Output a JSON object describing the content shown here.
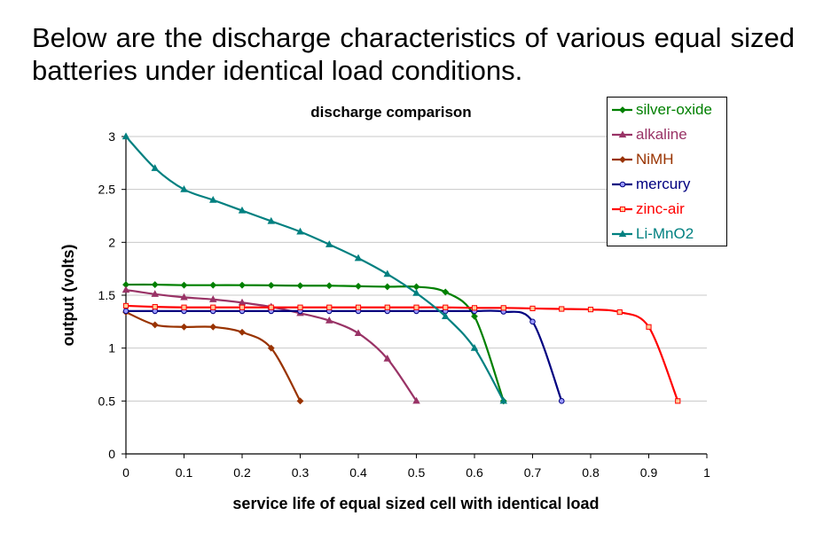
{
  "intro_text": "Below are the discharge characteristics of various equal sized batteries under identical load conditions.",
  "chart_data": {
    "type": "line",
    "title": "discharge comparison",
    "xlabel": "service life of equal sized cell with identical load",
    "ylabel": "output  (volts)",
    "xlim": [
      0,
      1
    ],
    "ylim": [
      0,
      3
    ],
    "xticks": [
      "0",
      "0.1",
      "0.2",
      "0.3",
      "0.4",
      "0.5",
      "0.6",
      "0.7",
      "0.8",
      "0.9",
      "1"
    ],
    "yticks": [
      "0",
      "0.5",
      "1",
      "1.5",
      "2",
      "2.5",
      "3"
    ],
    "grid": "horizontal",
    "legend_position": "top-right",
    "series": [
      {
        "name": "silver-oxide",
        "color": "#008000",
        "marker": "diamond",
        "x": [
          0,
          0.05,
          0.1,
          0.15,
          0.2,
          0.25,
          0.3,
          0.35,
          0.4,
          0.45,
          0.5,
          0.55,
          0.6,
          0.65
        ],
        "y": [
          1.6,
          1.6,
          1.595,
          1.595,
          1.595,
          1.593,
          1.59,
          1.59,
          1.585,
          1.58,
          1.58,
          1.53,
          1.3,
          0.5
        ]
      },
      {
        "name": "alkaline",
        "color": "#993366",
        "marker": "triangle",
        "x": [
          0,
          0.05,
          0.1,
          0.15,
          0.2,
          0.25,
          0.3,
          0.35,
          0.4,
          0.45,
          0.5
        ],
        "y": [
          1.55,
          1.51,
          1.48,
          1.46,
          1.43,
          1.39,
          1.33,
          1.26,
          1.14,
          0.9,
          0.5
        ]
      },
      {
        "name": "NiMH",
        "color": "#993300",
        "marker": "diamond",
        "x": [
          0,
          0.05,
          0.1,
          0.15,
          0.2,
          0.25,
          0.3
        ],
        "y": [
          1.34,
          1.22,
          1.2,
          1.2,
          1.15,
          1.0,
          0.5
        ]
      },
      {
        "name": "mercury",
        "color": "#000080",
        "marker": "circle",
        "x": [
          0,
          0.05,
          0.1,
          0.15,
          0.2,
          0.25,
          0.3,
          0.35,
          0.4,
          0.45,
          0.5,
          0.55,
          0.6,
          0.65,
          0.7,
          0.75
        ],
        "y": [
          1.35,
          1.35,
          1.35,
          1.35,
          1.35,
          1.35,
          1.35,
          1.35,
          1.35,
          1.35,
          1.35,
          1.35,
          1.35,
          1.345,
          1.25,
          0.5
        ]
      },
      {
        "name": "zinc-air",
        "color": "#FF0000",
        "marker": "square",
        "x": [
          0,
          0.05,
          0.1,
          0.15,
          0.2,
          0.25,
          0.3,
          0.35,
          0.4,
          0.45,
          0.5,
          0.55,
          0.6,
          0.65,
          0.7,
          0.75,
          0.8,
          0.85,
          0.9,
          0.95
        ],
        "y": [
          1.4,
          1.39,
          1.385,
          1.385,
          1.385,
          1.385,
          1.385,
          1.385,
          1.385,
          1.385,
          1.385,
          1.385,
          1.38,
          1.38,
          1.375,
          1.37,
          1.365,
          1.34,
          1.2,
          0.5
        ]
      },
      {
        "name": "Li-MnO2",
        "color": "#008080",
        "marker": "triangle",
        "x": [
          0,
          0.05,
          0.1,
          0.15,
          0.2,
          0.25,
          0.3,
          0.35,
          0.4,
          0.45,
          0.5,
          0.55,
          0.6,
          0.65
        ],
        "y": [
          3.0,
          2.7,
          2.5,
          2.4,
          2.3,
          2.2,
          2.1,
          1.98,
          1.85,
          1.7,
          1.52,
          1.3,
          1.0,
          0.5
        ]
      }
    ]
  }
}
